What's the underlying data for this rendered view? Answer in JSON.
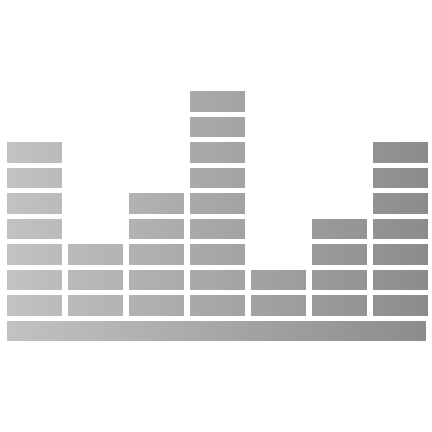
{
  "equalizer": {
    "column_levels": [
      7,
      3,
      5,
      9,
      2,
      4,
      7
    ],
    "colors": {
      "gradient_light": "#c2c2c2",
      "gradient_dark": "#8c8c8c",
      "background": "#ffffff"
    },
    "icon": "equalizer-bars-icon"
  }
}
